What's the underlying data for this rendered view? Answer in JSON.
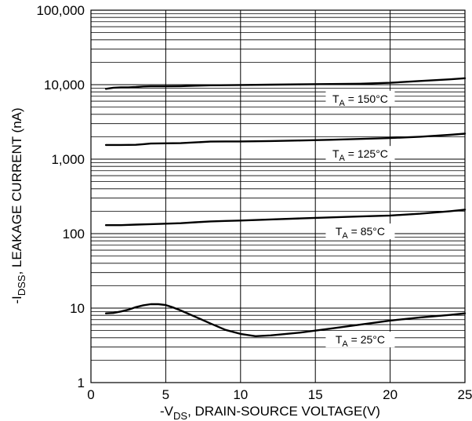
{
  "chart_data": {
    "type": "line",
    "xlabel": {
      "prefix": "-V",
      "sub": "DS",
      "suffix": ", DRAIN-SOURCE VOLTAGE(V)"
    },
    "ylabel": {
      "prefix": "-I",
      "sub": "DSS",
      "suffix": ", LEAKAGE CURRENT (nA)"
    },
    "xlim": [
      0,
      25
    ],
    "ylim": [
      1,
      100000
    ],
    "y_scale": "log",
    "grid": true,
    "x_ticks": [
      0,
      5,
      10,
      15,
      20,
      25
    ],
    "x_tick_labels": [
      "0",
      "5",
      "10",
      "15",
      "20",
      "25"
    ],
    "y_ticks": [
      1,
      10,
      100,
      1000,
      10000,
      100000
    ],
    "y_tick_labels": [
      "1",
      "10",
      "100",
      "1,000",
      "10,000",
      "100,000"
    ],
    "series": [
      {
        "name": "TA = 150°C",
        "label": {
          "prefix": "T",
          "sub": "A",
          "suffix": " = 150°C"
        },
        "label_x": 18,
        "x": [
          1,
          1.5,
          2,
          2.5,
          3,
          3.5,
          4,
          5,
          6,
          7,
          8,
          10,
          12,
          14,
          16,
          18,
          20,
          22,
          24,
          25
        ],
        "y": [
          8800,
          9100,
          9200,
          9200,
          9300,
          9450,
          9500,
          9500,
          9550,
          9700,
          9800,
          9900,
          10000,
          10100,
          10200,
          10300,
          10600,
          11200,
          11800,
          12200
        ]
      },
      {
        "name": "TA = 125°C",
        "label": {
          "prefix": "T",
          "sub": "A",
          "suffix": " = 125°C"
        },
        "label_x": 18,
        "x": [
          1,
          2,
          3,
          3.5,
          4,
          5,
          6,
          7,
          8,
          9,
          10,
          12,
          14,
          16,
          18,
          20,
          22,
          24,
          25
        ],
        "y": [
          1550,
          1550,
          1560,
          1590,
          1620,
          1630,
          1640,
          1680,
          1720,
          1730,
          1730,
          1750,
          1780,
          1820,
          1870,
          1920,
          2000,
          2120,
          2200
        ]
      },
      {
        "name": "TA = 85°C",
        "label": {
          "prefix": "T",
          "sub": "A",
          "suffix": " = 85°C"
        },
        "label_x": 18,
        "x": [
          1,
          2,
          3,
          4,
          5,
          6,
          7,
          8,
          9,
          10,
          12,
          14,
          16,
          18,
          20,
          22,
          24,
          25
        ],
        "y": [
          130,
          130,
          132,
          134,
          136,
          138,
          142,
          146,
          148,
          150,
          155,
          160,
          165,
          170,
          175,
          185,
          200,
          210
        ]
      },
      {
        "name": "TA = 25°C",
        "label": {
          "prefix": "T",
          "sub": "A",
          "suffix": " = 25°C"
        },
        "label_x": 18,
        "x": [
          1,
          1.5,
          2,
          2.5,
          3,
          3.5,
          4,
          4.5,
          5,
          5.5,
          6,
          7,
          8,
          9,
          10,
          11,
          12,
          14,
          16,
          18,
          20,
          22,
          24,
          25
        ],
        "y": [
          8.5,
          8.6,
          9.0,
          9.5,
          10.3,
          10.9,
          11.3,
          11.3,
          11.0,
          10.2,
          9.3,
          7.6,
          6.2,
          5.1,
          4.5,
          4.2,
          4.3,
          4.7,
          5.3,
          6.0,
          6.8,
          7.5,
          8.1,
          8.5
        ]
      }
    ]
  }
}
